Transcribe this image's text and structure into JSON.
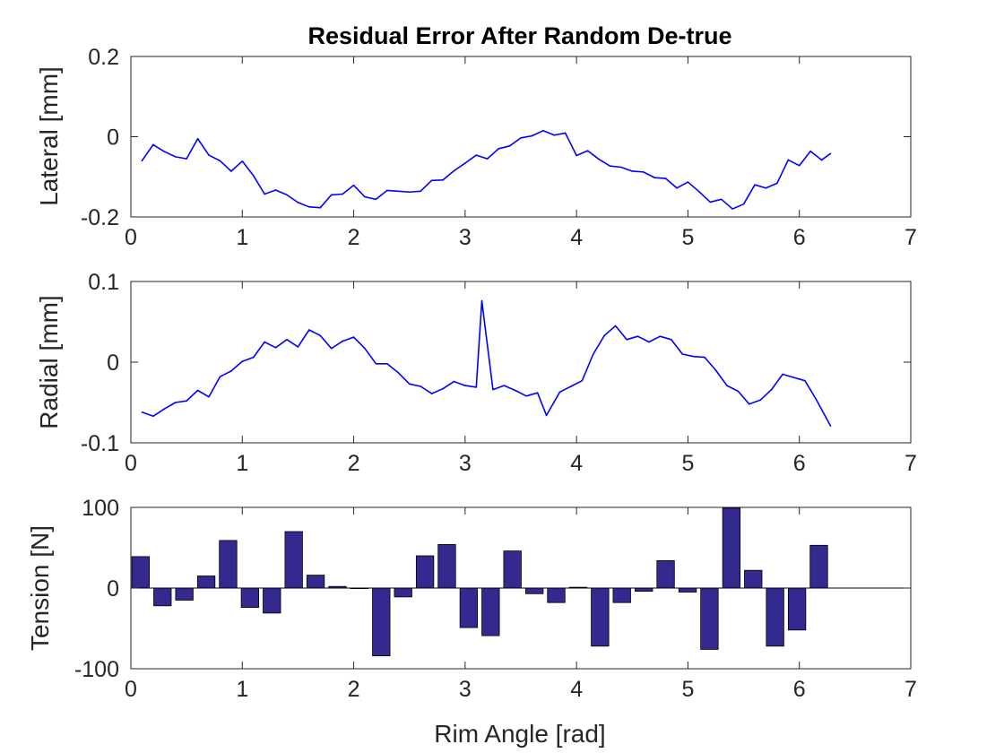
{
  "figure_title": "Residual Error After Random De-true",
  "colors": {
    "line": "#0000ff",
    "bar_fill": "#33298f",
    "bar_edge": "#000000",
    "axes": "#262626"
  },
  "chart_data": [
    {
      "type": "line",
      "title": "Residual Error After Random De-true",
      "xlabel": "",
      "ylabel": "Lateral [mm]",
      "xlim": [
        0,
        7
      ],
      "ylim": [
        -0.2,
        0.2
      ],
      "xticks": [
        "0",
        "1",
        "2",
        "3",
        "4",
        "5",
        "6",
        "7"
      ],
      "yticks": [
        "-0.2",
        "0",
        "0.2"
      ],
      "series": [
        {
          "x": [
            0.1,
            0.2,
            0.3,
            0.4,
            0.5,
            0.6,
            0.7,
            0.8,
            0.9,
            1.0,
            1.1,
            1.2,
            1.3,
            1.4,
            1.5,
            1.6,
            1.7,
            1.8,
            1.9,
            2.0,
            2.1,
            2.2,
            2.3,
            2.4,
            2.5,
            2.6,
            2.7,
            2.8,
            2.9,
            3.0,
            3.1,
            3.2,
            3.3,
            3.4,
            3.5,
            3.6,
            3.7,
            3.8,
            3.9,
            4.0,
            4.1,
            4.2,
            4.3,
            4.4,
            4.5,
            4.6,
            4.7,
            4.8,
            4.9,
            5.0,
            5.1,
            5.2,
            5.3,
            5.4,
            5.5,
            5.6,
            5.7,
            5.8,
            5.9,
            6.0,
            6.1,
            6.2,
            6.28
          ],
          "values": [
            -0.06,
            -0.02,
            -0.037,
            -0.05,
            -0.055,
            -0.005,
            -0.046,
            -0.06,
            -0.086,
            -0.061,
            -0.097,
            -0.143,
            -0.133,
            -0.145,
            -0.164,
            -0.175,
            -0.177,
            -0.145,
            -0.143,
            -0.121,
            -0.15,
            -0.156,
            -0.134,
            -0.136,
            -0.138,
            -0.136,
            -0.109,
            -0.108,
            -0.085,
            -0.066,
            -0.046,
            -0.055,
            -0.03,
            -0.023,
            -0.003,
            0.002,
            0.015,
            0.004,
            0.009,
            -0.047,
            -0.035,
            -0.056,
            -0.073,
            -0.076,
            -0.086,
            -0.088,
            -0.102,
            -0.104,
            -0.128,
            -0.113,
            -0.137,
            -0.163,
            -0.156,
            -0.18,
            -0.168,
            -0.12,
            -0.128,
            -0.116,
            -0.058,
            -0.072,
            -0.036,
            -0.058,
            -0.042
          ]
        }
      ]
    },
    {
      "type": "line",
      "title": "",
      "xlabel": "",
      "ylabel": "Radial [mm]",
      "xlim": [
        0,
        7
      ],
      "ylim": [
        -0.1,
        0.1
      ],
      "xticks": [
        "0",
        "1",
        "2",
        "3",
        "4",
        "5",
        "6",
        "7"
      ],
      "yticks": [
        "-0.1",
        "0",
        "0.1"
      ],
      "series": [
        {
          "x": [
            0.1,
            0.2,
            0.3,
            0.4,
            0.5,
            0.6,
            0.7,
            0.8,
            0.9,
            1.0,
            1.1,
            1.2,
            1.3,
            1.4,
            1.5,
            1.6,
            1.7,
            1.8,
            1.9,
            2.0,
            2.1,
            2.2,
            2.3,
            2.4,
            2.5,
            2.6,
            2.7,
            2.8,
            2.9,
            3.0,
            3.1,
            3.15,
            3.25,
            3.35,
            3.45,
            3.55,
            3.65,
            3.73,
            3.85,
            3.95,
            4.05,
            4.15,
            4.25,
            4.35,
            4.45,
            4.55,
            4.65,
            4.75,
            4.85,
            4.95,
            5.05,
            5.15,
            5.25,
            5.35,
            5.45,
            5.55,
            5.65,
            5.75,
            5.85,
            5.95,
            6.05,
            6.15,
            6.28
          ],
          "values": [
            -0.062,
            -0.067,
            -0.058,
            -0.05,
            -0.048,
            -0.035,
            -0.043,
            -0.018,
            -0.011,
            0.001,
            0.006,
            0.025,
            0.018,
            0.028,
            0.019,
            0.04,
            0.033,
            0.017,
            0.026,
            0.031,
            0.017,
            -0.002,
            -0.002,
            -0.013,
            -0.027,
            -0.03,
            -0.039,
            -0.033,
            -0.024,
            -0.029,
            -0.031,
            0.076,
            -0.034,
            -0.029,
            -0.035,
            -0.042,
            -0.038,
            -0.066,
            -0.037,
            -0.03,
            -0.023,
            0.01,
            0.033,
            0.045,
            0.028,
            0.032,
            0.025,
            0.032,
            0.028,
            0.01,
            0.007,
            0.006,
            -0.01,
            -0.029,
            -0.036,
            -0.052,
            -0.047,
            -0.034,
            -0.015,
            -0.019,
            -0.023,
            -0.046,
            -0.079
          ]
        }
      ]
    },
    {
      "type": "bar",
      "title": "",
      "xlabel": "Rim Angle [rad]",
      "ylabel": "Tension [N]",
      "xlim": [
        0,
        7
      ],
      "ylim": [
        -100,
        100
      ],
      "xticks": [
        "0",
        "1",
        "2",
        "3",
        "4",
        "5",
        "6",
        "7"
      ],
      "yticks": [
        "-100",
        "0",
        "100"
      ],
      "bar_width": 0.157,
      "series": [
        {
          "x": [
            0.0873,
            0.2836,
            0.48,
            0.6763,
            0.8727,
            1.069,
            1.2654,
            1.4618,
            1.658,
            1.8544,
            2.0508,
            2.2472,
            2.4435,
            2.64,
            2.836,
            3.0325,
            3.229,
            3.425,
            3.622,
            3.818,
            4.015,
            4.211,
            4.407,
            4.604,
            4.8,
            4.997,
            5.193,
            5.39,
            5.586,
            5.782,
            5.979,
            6.175
          ],
          "values": [
            39,
            -22,
            -15,
            15,
            59,
            -24,
            -31,
            70,
            16,
            2,
            0,
            -84,
            -11,
            40,
            54,
            -49,
            -59,
            46,
            -7,
            -18,
            1,
            -72,
            -18,
            -4,
            34,
            -5,
            -76,
            99,
            22,
            -72,
            -52,
            53
          ]
        }
      ]
    }
  ]
}
